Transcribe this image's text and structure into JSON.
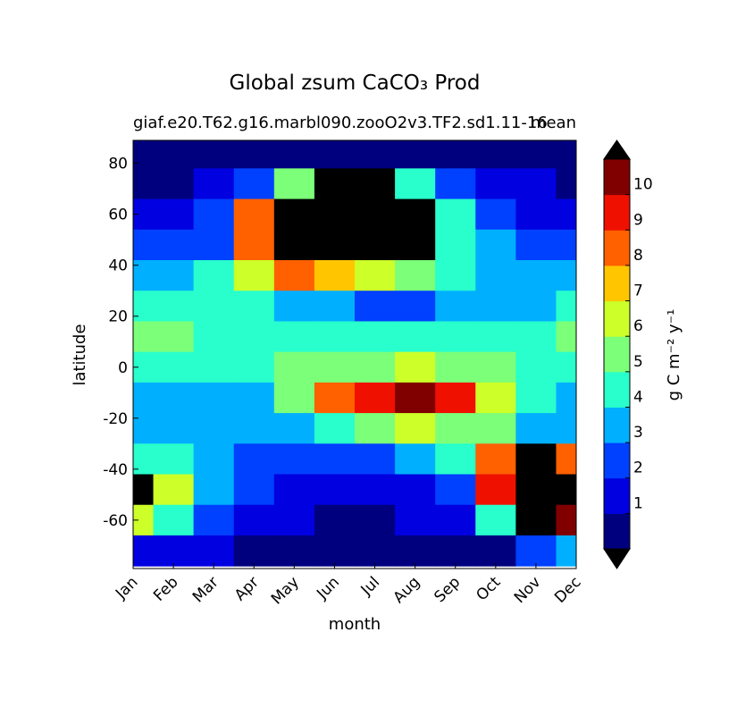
{
  "chart_data": {
    "type": "contourf",
    "title": "Global zsum CaCO₃ Prod",
    "subtitle_left": "giaf.e20.T62.g16.marbl090.zooO2v3.TF2.sd1.11-16",
    "subtitle_right": "mean",
    "xlabel": "month",
    "ylabel": "latitude",
    "colorbar_label": "g C m⁻² y⁻¹",
    "categories": [
      "Jan",
      "Feb",
      "Mar",
      "Apr",
      "May",
      "Jun",
      "Jul",
      "Aug",
      "Sep",
      "Oct",
      "Nov",
      "Dec"
    ],
    "xlim": [
      0,
      11
    ],
    "ylim": [
      -79,
      89
    ],
    "yticks": [
      -60,
      -40,
      -20,
      0,
      20,
      40,
      60,
      80
    ],
    "lat": [
      84,
      72,
      60,
      48,
      36,
      24,
      12,
      0,
      -12,
      -24,
      -36,
      -48,
      -60,
      -72
    ],
    "lat_step": 12,
    "z": [
      [
        0.5,
        0.5,
        0.5,
        0.5,
        0.5,
        0.5,
        0.5,
        0.5,
        0.5,
        0.5,
        0.5,
        0.5
      ],
      [
        0.8,
        0.8,
        1.5,
        2.5,
        5,
        12,
        12,
        4,
        2,
        1.5,
        1,
        0.8
      ],
      [
        1.5,
        1.5,
        2,
        8,
        12,
        12,
        12,
        12,
        4,
        2.5,
        1.5,
        1.5
      ],
      [
        2,
        2,
        2.5,
        8,
        12,
        12,
        12,
        11,
        4,
        3,
        2,
        2
      ],
      [
        3,
        3,
        4,
        6,
        8,
        7,
        6,
        5,
        4,
        3,
        3,
        3
      ],
      [
        4,
        4,
        4,
        4.5,
        3.5,
        3,
        2.5,
        2.5,
        3,
        3,
        3.5,
        4
      ],
      [
        5.5,
        5,
        4,
        4,
        4,
        4,
        4,
        4,
        4,
        4,
        4,
        5
      ],
      [
        4.5,
        4.5,
        4.5,
        4.5,
        5,
        5.5,
        5.5,
        6,
        5.5,
        5,
        4.5,
        4.5
      ],
      [
        3,
        3,
        3,
        3.5,
        5,
        8,
        9,
        10,
        9,
        6,
        4,
        3.5
      ],
      [
        3,
        3,
        3,
        3,
        3,
        4.5,
        5.5,
        6,
        5.5,
        5,
        3.5,
        3
      ],
      [
        4,
        4,
        3,
        2,
        2,
        2,
        2,
        3,
        4,
        8,
        12,
        8
      ],
      [
        12,
        6,
        3,
        2,
        1.5,
        1,
        1,
        1.5,
        2.5,
        9,
        12,
        12
      ],
      [
        6,
        4,
        2,
        1.5,
        1,
        0.8,
        0.8,
        1,
        1.5,
        4,
        12,
        10
      ],
      [
        1,
        1,
        1,
        0.5,
        0.5,
        0.5,
        0.5,
        0.5,
        0.5,
        0.8,
        2,
        3
      ]
    ],
    "levels": [
      0,
      1,
      2,
      3,
      4,
      5,
      6,
      7,
      8,
      9,
      10,
      11
    ],
    "colors": [
      "#00007f",
      "#0000e0",
      "#0040ff",
      "#00b0ff",
      "#28ffcc",
      "#7cff79",
      "#cdff29",
      "#ffc600",
      "#ff6000",
      "#f01000",
      "#800000"
    ],
    "over_color": "#000000",
    "under_color": "#000000",
    "cticks": [
      1,
      2,
      3,
      4,
      5,
      6,
      7,
      8,
      9,
      10
    ]
  }
}
